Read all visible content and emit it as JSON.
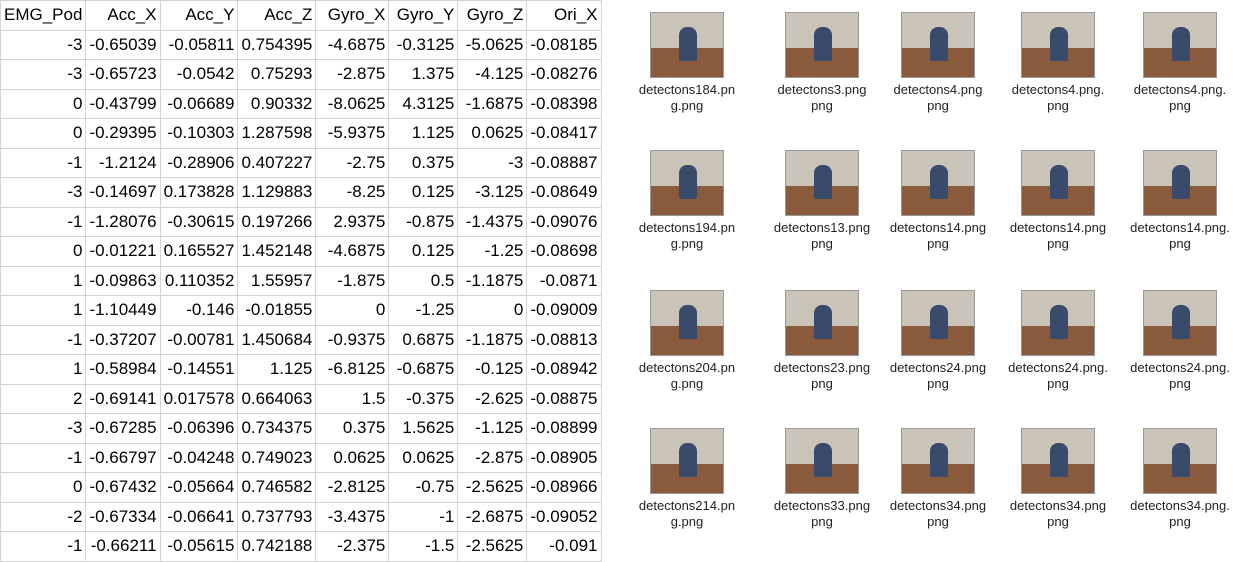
{
  "table": {
    "header": [
      "EMG_Pod",
      "Acc_X",
      "Acc_Y",
      "Acc_Z",
      "Gyro_X",
      "Gyro_Y",
      "Gyro_Z",
      "Ori_X"
    ],
    "rows": [
      [
        -3,
        -0.65039,
        -0.05811,
        0.754395,
        -4.6875,
        -0.3125,
        -5.0625,
        -0.08185
      ],
      [
        -3,
        -0.65723,
        -0.0542,
        0.75293,
        -2.875,
        1.375,
        -4.125,
        -0.08276
      ],
      [
        0,
        -0.43799,
        -0.06689,
        0.90332,
        -8.0625,
        4.3125,
        -1.6875,
        -0.08398
      ],
      [
        0,
        -0.29395,
        -0.10303,
        1.287598,
        -5.9375,
        1.125,
        0.0625,
        -0.08417
      ],
      [
        -1,
        -1.2124,
        -0.28906,
        0.407227,
        -2.75,
        0.375,
        -3,
        -0.08887
      ],
      [
        -3,
        -0.14697,
        0.173828,
        1.129883,
        -8.25,
        0.125,
        -3.125,
        -0.08649
      ],
      [
        -1,
        -1.28076,
        -0.30615,
        0.197266,
        2.9375,
        -0.875,
        -1.4375,
        -0.09076
      ],
      [
        0,
        -0.01221,
        0.165527,
        1.452148,
        -4.6875,
        0.125,
        -1.25,
        -0.08698
      ],
      [
        1,
        -0.09863,
        0.110352,
        1.55957,
        -1.875,
        0.5,
        -1.1875,
        -0.0871
      ],
      [
        1,
        -1.10449,
        -0.146,
        -0.01855,
        0,
        -1.25,
        0,
        -0.09009
      ],
      [
        -1,
        -0.37207,
        -0.00781,
        1.450684,
        -0.9375,
        0.6875,
        -1.1875,
        -0.08813
      ],
      [
        1,
        -0.58984,
        -0.14551,
        1.125,
        -6.8125,
        -0.6875,
        -0.125,
        -0.08942
      ],
      [
        2,
        -0.69141,
        0.017578,
        0.664063,
        1.5,
        -0.375,
        -2.625,
        -0.08875
      ],
      [
        -3,
        -0.67285,
        -0.06396,
        0.734375,
        0.375,
        1.5625,
        -1.125,
        -0.08899
      ],
      [
        -1,
        -0.66797,
        -0.04248,
        0.749023,
        0.0625,
        0.0625,
        -2.875,
        -0.08905
      ],
      [
        0,
        -0.67432,
        -0.05664,
        0.746582,
        -2.8125,
        -0.75,
        -2.5625,
        -0.08966
      ],
      [
        -2,
        -0.67334,
        -0.06641,
        0.737793,
        -3.4375,
        -1,
        -2.6875,
        -0.09052
      ],
      [
        -1,
        -0.66211,
        -0.05615,
        0.742188,
        -2.375,
        -1.5,
        -2.5625,
        -0.091
      ]
    ]
  },
  "files": [
    [
      [
        "detectons184.pn",
        "g.png"
      ],
      [
        "detectons3.png",
        "png"
      ],
      [
        "detectons4.png",
        "png"
      ],
      [
        "detectons4.png.",
        "png"
      ],
      [
        "detectons4.png.",
        "png"
      ]
    ],
    [
      [
        "detectons194.pn",
        "g.png"
      ],
      [
        "detectons13.png",
        "png"
      ],
      [
        "detectons14.png",
        "png"
      ],
      [
        "detectons14.png",
        "png"
      ],
      [
        "detectons14.png.",
        "png"
      ]
    ],
    [
      [
        "detectons204.pn",
        "g.png"
      ],
      [
        "detectons23.png",
        "png"
      ],
      [
        "detectons24.png",
        "png"
      ],
      [
        "detectons24.png.",
        "png"
      ],
      [
        "detectons24.png.",
        "png"
      ]
    ],
    [
      [
        "detectons214.pn",
        "g.png"
      ],
      [
        "detectons33.png",
        "png"
      ],
      [
        "detectons34.png",
        "png"
      ],
      [
        "detectons34.png",
        "png"
      ],
      [
        "detectons34.png.",
        "png"
      ]
    ]
  ]
}
